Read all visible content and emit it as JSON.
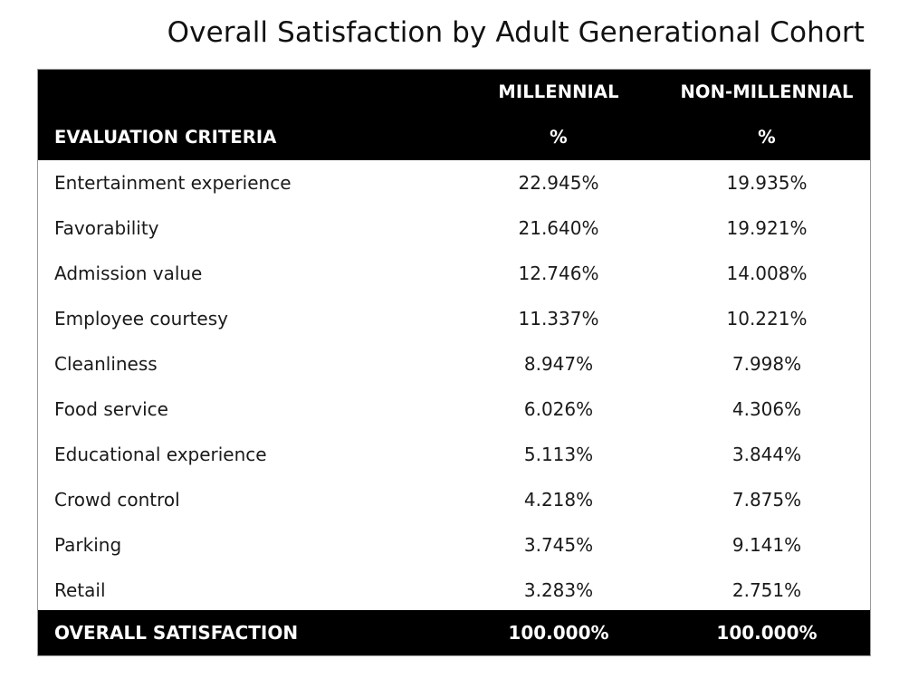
{
  "title": "Overall Satisfaction by Adult Generational Cohort",
  "header": {
    "criteria_label": "EVALUATION CRITERIA",
    "millennial_label": "MILLENNIAL",
    "non_millennial_label": "NON-MILLENNIAL",
    "millennial_unit": "%",
    "non_millennial_unit": "%"
  },
  "footer": {
    "label": "OVERALL SATISFACTION",
    "millennial": "100.000%",
    "non_millennial": "100.000%"
  },
  "colors": {
    "header_background": "#000000",
    "header_text": "#ffffff",
    "body_text": "#1a1a1a",
    "border": "#9a9a9a"
  },
  "chart_data": {
    "type": "table",
    "title": "Overall Satisfaction by Adult Generational Cohort",
    "columns": [
      "EVALUATION CRITERIA",
      "MILLENNIAL %",
      "NON-MILLENNIAL %"
    ],
    "rows": [
      {
        "criteria": "Entertainment experience",
        "millennial": "22.945%",
        "non_millennial": "19.935%"
      },
      {
        "criteria": "Favorability",
        "millennial": "21.640%",
        "non_millennial": "19.921%"
      },
      {
        "criteria": "Admission value",
        "millennial": "12.746%",
        "non_millennial": "14.008%"
      },
      {
        "criteria": "Employee courtesy",
        "millennial": "11.337%",
        "non_millennial": "10.221%"
      },
      {
        "criteria": "Cleanliness",
        "millennial": "8.947%",
        "non_millennial": "7.998%"
      },
      {
        "criteria": "Food service",
        "millennial": "6.026%",
        "non_millennial": "4.306%"
      },
      {
        "criteria": "Educational experience",
        "millennial": "5.113%",
        "non_millennial": "3.844%"
      },
      {
        "criteria": "Crowd control",
        "millennial": "4.218%",
        "non_millennial": "7.875%"
      },
      {
        "criteria": "Parking",
        "millennial": "3.745%",
        "non_millennial": "9.141%"
      },
      {
        "criteria": "Retail",
        "millennial": "3.283%",
        "non_millennial": "2.751%"
      }
    ],
    "total": {
      "criteria": "OVERALL SATISFACTION",
      "millennial": "100.000%",
      "non_millennial": "100.000%"
    }
  }
}
